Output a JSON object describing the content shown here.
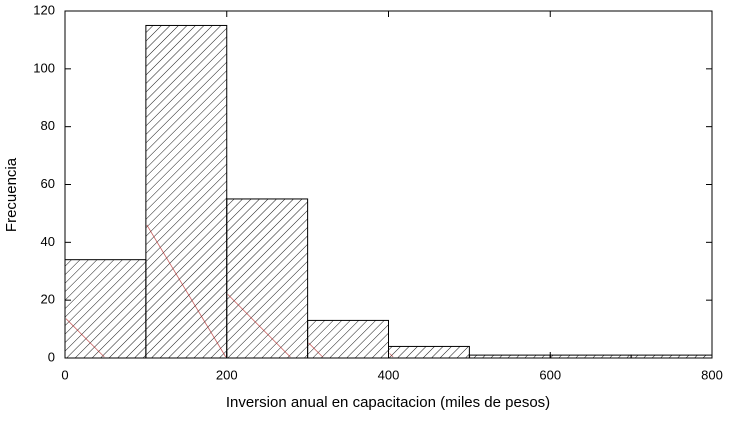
{
  "chart_data": {
    "type": "histogram",
    "x_label": "Inversion anual en capacitacion (miles de pesos)",
    "y_label": "Frecuencia",
    "bins": [
      0,
      100,
      200,
      300,
      400,
      500,
      600,
      700,
      800
    ],
    "values": [
      34,
      115,
      55,
      13,
      4,
      1,
      1,
      1
    ],
    "color": "#000000",
    "hatch_color": "#b22222",
    "xlim": [
      0,
      800
    ],
    "xticks": [
      0,
      200,
      400,
      600,
      800
    ],
    "ylim": [
      0,
      120
    ],
    "yticks": [
      0,
      20,
      40,
      60,
      80,
      100,
      120
    ]
  }
}
